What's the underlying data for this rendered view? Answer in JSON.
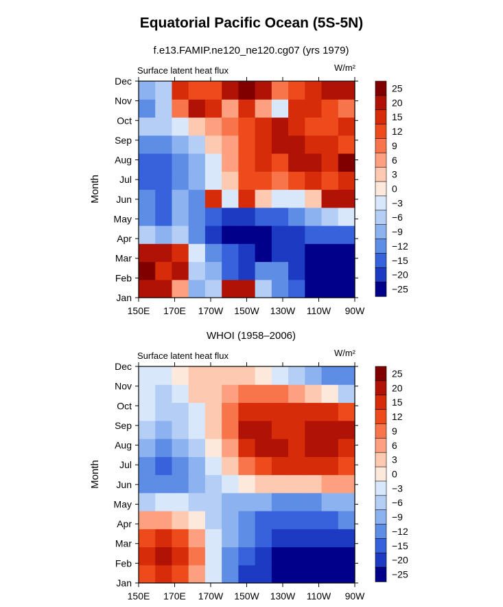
{
  "title": "Equatorial Pacific Ocean (5S-5N)",
  "chart_data": [
    {
      "type": "heatmap",
      "subtitle": "f.e13.FAMIP.ne120_ne120.cg07 (yrs 1979)",
      "left_label": "Surface latent heat flux",
      "units": "W/m²",
      "xlabel": "",
      "ylabel": "Month",
      "x_ticks": [
        "150E",
        "170E",
        "170W",
        "150W",
        "130W",
        "110W",
        "90W"
      ],
      "y_ticks": [
        "Jan",
        "Feb",
        "Mar",
        "Apr",
        "May",
        "Jun",
        "Jul",
        "Aug",
        "Sep",
        "Oct",
        "Nov",
        "Dec"
      ],
      "colorbar_labels": [
        "25",
        "20",
        "15",
        "12",
        "9",
        "6",
        "3",
        "0",
        "−3",
        "−6",
        "−9",
        "−12",
        "−15",
        "−20",
        "−25"
      ],
      "values": [
        [
          22,
          22,
          6,
          -10,
          -6,
          22,
          22,
          -6,
          -12,
          -15,
          -25,
          -25,
          -25
        ],
        [
          24,
          15,
          20,
          -6,
          -9,
          -15,
          -20,
          -12,
          -12,
          -20,
          -25,
          -25,
          -25
        ],
        [
          20,
          20,
          15,
          -3,
          -12,
          -15,
          -20,
          -25,
          -20,
          -20,
          -25,
          -25,
          -25
        ],
        [
          -6,
          -9,
          -6,
          -12,
          -20,
          -25,
          -25,
          -25,
          -20,
          -20,
          -15,
          -15,
          -15
        ],
        [
          -12,
          -15,
          -9,
          -12,
          -15,
          -20,
          -20,
          -15,
          -15,
          -12,
          -9,
          -6,
          -3
        ],
        [
          -12,
          -15,
          -9,
          -12,
          15,
          -3,
          15,
          3,
          -3,
          -3,
          3,
          20,
          20
        ],
        [
          -15,
          -15,
          -12,
          -9,
          -3,
          3,
          12,
          12,
          9,
          12,
          15,
          12,
          15
        ],
        [
          -15,
          -15,
          -12,
          -9,
          -3,
          6,
          12,
          15,
          12,
          20,
          20,
          15,
          25
        ],
        [
          -12,
          -12,
          -9,
          -6,
          3,
          6,
          12,
          15,
          20,
          20,
          15,
          15,
          12
        ],
        [
          -6,
          -6,
          -3,
          3,
          6,
          9,
          12,
          15,
          20,
          15,
          12,
          12,
          15
        ],
        [
          -12,
          -6,
          9,
          20,
          15,
          6,
          15,
          6,
          -3,
          15,
          15,
          12,
          9
        ],
        [
          -9,
          -6,
          15,
          12,
          12,
          20,
          25,
          20,
          9,
          12,
          15,
          20,
          20
        ]
      ]
    },
    {
      "type": "heatmap",
      "subtitle": "WHOI (1958–2006)",
      "left_label": "Surface latent heat flux",
      "units": "W/m²",
      "xlabel": "",
      "ylabel": "Month",
      "x_ticks": [
        "150E",
        "170E",
        "170W",
        "150W",
        "130W",
        "110W",
        "90W"
      ],
      "y_ticks": [
        "Jan",
        "Feb",
        "Mar",
        "Apr",
        "May",
        "Jun",
        "Jul",
        "Aug",
        "Sep",
        "Oct",
        "Nov",
        "Dec"
      ],
      "colorbar_labels": [
        "25",
        "20",
        "15",
        "12",
        "9",
        "6",
        "3",
        "0",
        "−3",
        "−6",
        "−9",
        "−12",
        "−15",
        "−20",
        "−25"
      ],
      "values": [
        [
          12,
          15,
          12,
          6,
          -3,
          -12,
          -20,
          -20,
          -25,
          -25,
          -25,
          -25,
          -25
        ],
        [
          15,
          20,
          15,
          9,
          -3,
          -12,
          -15,
          -20,
          -25,
          -25,
          -25,
          -25,
          -25
        ],
        [
          12,
          15,
          12,
          6,
          -3,
          -9,
          -12,
          -15,
          -20,
          -20,
          -20,
          -20,
          -20
        ],
        [
          6,
          6,
          3,
          0,
          -6,
          -9,
          -12,
          -15,
          -15,
          -15,
          -15,
          -15,
          -12
        ],
        [
          -6,
          -3,
          -3,
          -6,
          -6,
          -9,
          -9,
          -9,
          -12,
          -12,
          -12,
          -9,
          -9
        ],
        [
          -12,
          -12,
          -12,
          -9,
          -6,
          -3,
          0,
          3,
          3,
          3,
          3,
          6,
          6
        ],
        [
          -12,
          -15,
          -12,
          -9,
          -3,
          3,
          9,
          12,
          15,
          15,
          15,
          15,
          12
        ],
        [
          -9,
          -12,
          -9,
          -6,
          0,
          6,
          15,
          20,
          20,
          15,
          20,
          20,
          15
        ],
        [
          -6,
          -9,
          -6,
          -3,
          3,
          9,
          20,
          20,
          15,
          15,
          20,
          20,
          20
        ],
        [
          -3,
          -6,
          -6,
          -3,
          3,
          9,
          15,
          15,
          15,
          15,
          15,
          15,
          12
        ],
        [
          -3,
          -6,
          -3,
          3,
          3,
          6,
          9,
          9,
          9,
          6,
          3,
          0,
          -6
        ],
        [
          -3,
          -3,
          0,
          3,
          3,
          3,
          3,
          0,
          -3,
          -6,
          -9,
          -12,
          -12
        ]
      ]
    }
  ]
}
